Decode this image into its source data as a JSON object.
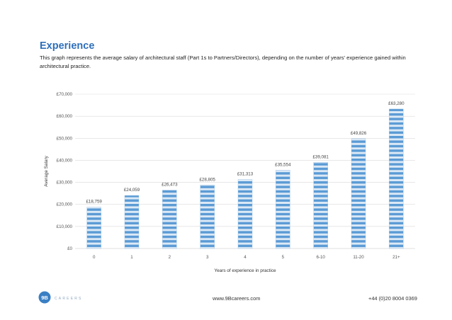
{
  "header": {
    "title": "Experience",
    "description": "This graph represents the average salary of architectural staff (Part 1s to Partners/Directors), depending on the number of years' experience gained within architectural practice."
  },
  "colors": {
    "title": "#2f6fba",
    "bar_stripe_dark": "#5b9bd5",
    "bar_stripe_light": "#dce9f6",
    "gridline": "#d9d9d9",
    "logo": "#3a7fc4"
  },
  "chart_data": {
    "type": "bar",
    "title": "",
    "xlabel": "Years of experience in practice",
    "ylabel": "Average Salary",
    "ylim": [
      0,
      70000
    ],
    "yticks": [
      0,
      10000,
      20000,
      30000,
      40000,
      50000,
      60000,
      70000
    ],
    "ytick_labels": [
      "£0",
      "£10,000",
      "£20,000",
      "£30,000",
      "£40,000",
      "£50,000",
      "£60,000",
      "£70,000"
    ],
    "categories": [
      "0",
      "1",
      "2",
      "3",
      "4",
      "5",
      "6-10",
      "11-20",
      "21+"
    ],
    "values": [
      18759,
      24059,
      26473,
      28805,
      31313,
      35554,
      39081,
      49826,
      63280
    ],
    "data_labels": [
      "£18,759",
      "£24,059",
      "£26,473",
      "£28,805",
      "£31,313",
      "£35,554",
      "£39,081",
      "£49,826",
      "£63,280"
    ],
    "grid": true,
    "legend": "none"
  },
  "footer": {
    "logo_mark": "9B",
    "logo_text": "CAREERS",
    "url": "www.9Bcareers.com",
    "phone": "+44 (0)20 8004 0369"
  }
}
